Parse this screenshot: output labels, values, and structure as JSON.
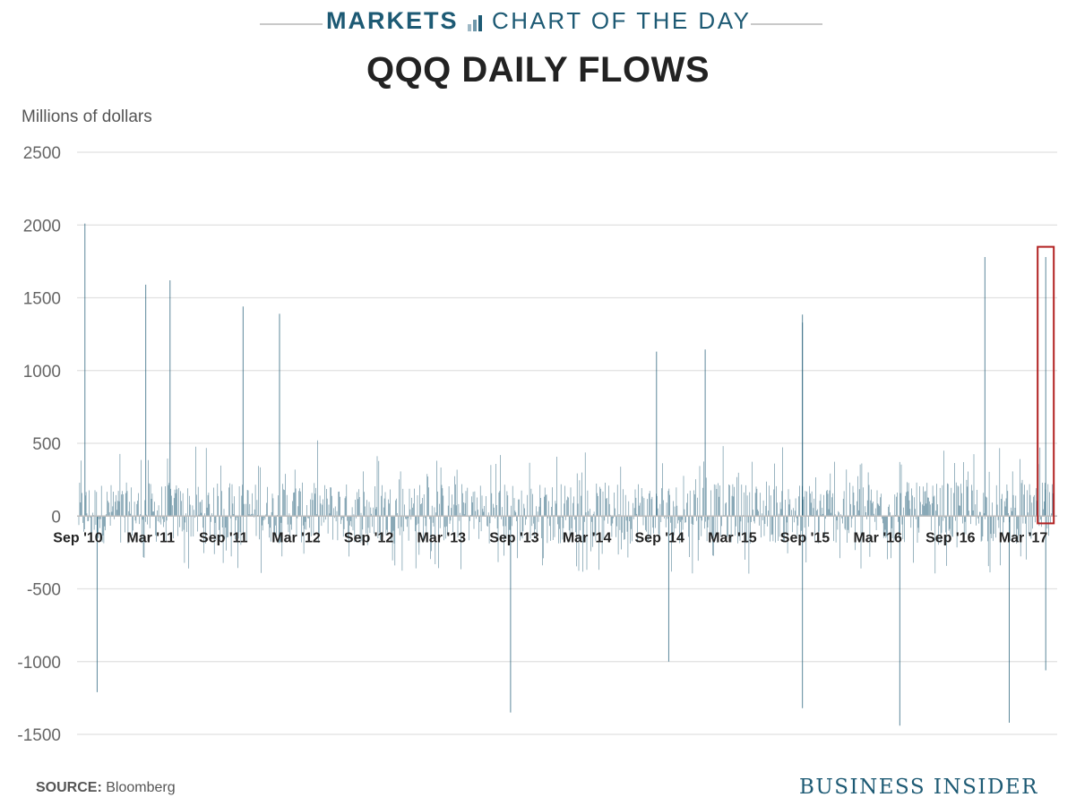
{
  "header": {
    "section": "MARKETS",
    "feature": "CHART OF THE DAY",
    "title": "QQQ DAILY FLOWS",
    "accent_color": "#1d5a74",
    "icon": "bar-chart-icon"
  },
  "footer": {
    "source_label": "SOURCE:",
    "source_value": "Bloomberg",
    "brand": "BUSINESS INSIDER"
  },
  "chart_data": {
    "type": "bar",
    "title": "QQQ DAILY FLOWS",
    "xlabel": "",
    "ylabel": "Millions of dollars",
    "ylim": [
      -1500,
      2500
    ],
    "yticks": [
      2500,
      2000,
      1500,
      1000,
      500,
      0,
      -500,
      -1000,
      -1500
    ],
    "xtick_labels": [
      "Sep '10",
      "Mar '11",
      "Sep '11",
      "Mar '12",
      "Sep '12",
      "Mar '13",
      "Sep '13",
      "Mar '14",
      "Sep '14",
      "Mar '15",
      "Sep '15",
      "Mar '16",
      "Sep '16",
      "Mar '17"
    ],
    "x_range": [
      "2010-09",
      "2017-04"
    ],
    "grid": true,
    "bar_color": "#1d5a74",
    "highlight_color": "#b22222",
    "highlight": {
      "x_from": "2017-04",
      "x_to": "2017-04",
      "y_from": -50,
      "y_to": 1850
    },
    "notable_spikes": [
      {
        "date": "2010-09",
        "value": 2010
      },
      {
        "date": "2011-02",
        "value": 1590
      },
      {
        "date": "2011-04",
        "value": 1620
      },
      {
        "date": "2011-10",
        "value": 1440
      },
      {
        "date": "2012-01",
        "value": 1390
      },
      {
        "date": "2014-08",
        "value": 1130
      },
      {
        "date": "2014-12",
        "value": 1145
      },
      {
        "date": "2015-08",
        "value": 1385
      },
      {
        "date": "2015-08",
        "value": 1330
      },
      {
        "date": "2016-11",
        "value": 1780
      },
      {
        "date": "2017-04",
        "value": 1780
      },
      {
        "date": "2010-10",
        "value": -1210
      },
      {
        "date": "2013-08",
        "value": -1350
      },
      {
        "date": "2014-09",
        "value": -1000
      },
      {
        "date": "2015-08",
        "value": -1320
      },
      {
        "date": "2016-04",
        "value": -1440
      },
      {
        "date": "2017-01",
        "value": -1420
      },
      {
        "date": "2017-04",
        "value": -1060
      }
    ]
  }
}
